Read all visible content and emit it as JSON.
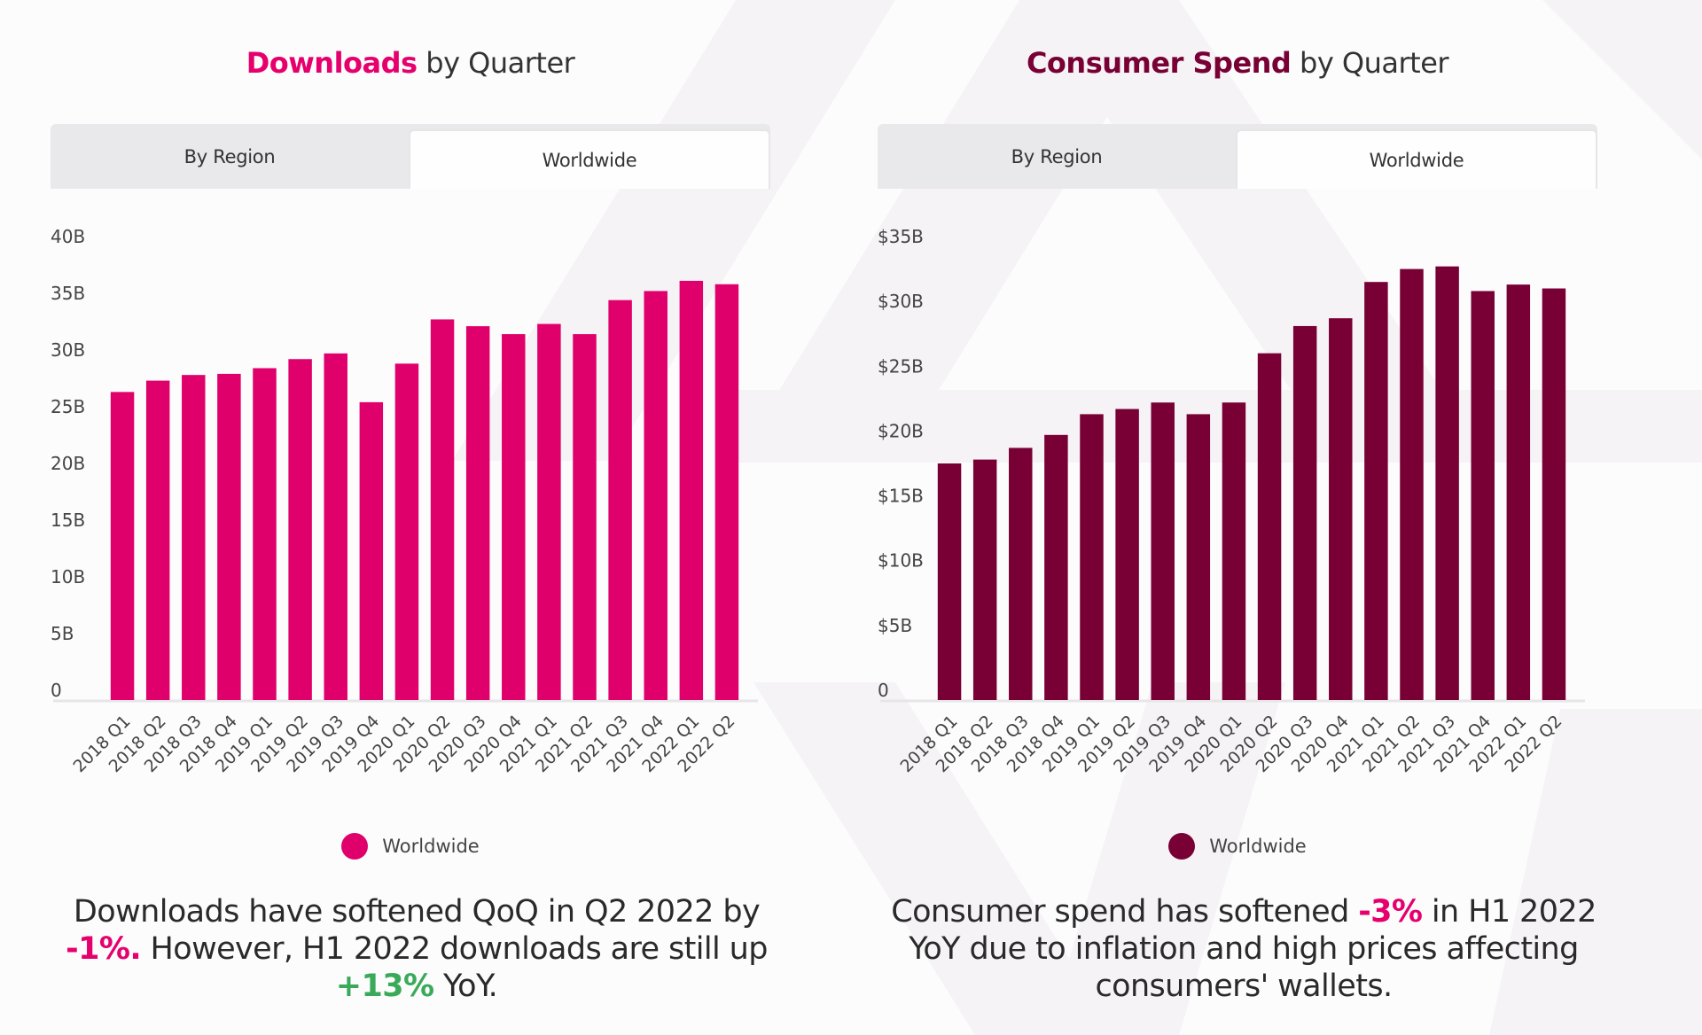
{
  "colors": {
    "downloads": "#e0006b",
    "spend": "#780034",
    "negative": "#e5006d",
    "positive": "#3aaa5a"
  },
  "left": {
    "title_highlight": "Downloads",
    "title_rest": " by Quarter",
    "tabs": [
      {
        "label": "By Region",
        "active": false
      },
      {
        "label": "Worldwide",
        "active": true
      }
    ],
    "legend_label": "Worldwide",
    "commentary": {
      "part1": "Downloads have softened QoQ in Q2 2022 by ",
      "neg": "-1%.",
      "part2": " However, H1 2022 downloads are still up ",
      "pos": "+13%",
      "part3": " YoY."
    }
  },
  "right": {
    "title_highlight": "Consumer Spend",
    "title_rest": " by Quarter",
    "tabs": [
      {
        "label": "By Region",
        "active": false
      },
      {
        "label": "Worldwide",
        "active": true
      }
    ],
    "legend_label": "Worldwide",
    "commentary": {
      "part1": "Consumer spend has softened ",
      "neg": "-3%",
      "part2": " in H1 2022 YoY due to inflation and high prices affecting consumers' wallets."
    }
  },
  "chart_data": [
    {
      "type": "bar",
      "title": "Downloads by Quarter",
      "xlabel": "",
      "ylabel": "",
      "categories": [
        "2018 Q1",
        "2018 Q2",
        "2018 Q3",
        "2018 Q4",
        "2019 Q1",
        "2019 Q2",
        "2019 Q3",
        "2019 Q4",
        "2020 Q1",
        "2020 Q2",
        "2020 Q3",
        "2020 Q4",
        "2021 Q1",
        "2021 Q2",
        "2021 Q3",
        "2021 Q4",
        "2022 Q1",
        "2022 Q2"
      ],
      "series": [
        {
          "name": "Worldwide",
          "values": [
            26.3,
            27.3,
            27.8,
            27.9,
            28.4,
            29.2,
            29.7,
            25.4,
            28.8,
            32.7,
            32.1,
            31.4,
            32.3,
            31.4,
            34.4,
            35.2,
            36.1,
            35.8
          ]
        }
      ],
      "unit": "B",
      "ylim": [
        0,
        40
      ],
      "yticks": [
        0,
        5,
        10,
        15,
        20,
        25,
        30,
        35,
        40
      ],
      "ytick_labels": [
        "0",
        "5B",
        "10B",
        "15B",
        "20B",
        "25B",
        "30B",
        "35B",
        "40B"
      ],
      "grid": false,
      "legend": "bottom-center"
    },
    {
      "type": "bar",
      "title": "Consumer Spend by Quarter",
      "xlabel": "",
      "ylabel": "",
      "categories": [
        "2018 Q1",
        "2018 Q2",
        "2018 Q3",
        "2018 Q4",
        "2019 Q1",
        "2019 Q2",
        "2019 Q3",
        "2019 Q4",
        "2020 Q1",
        "2020 Q2",
        "2020 Q3",
        "2020 Q4",
        "2021 Q1",
        "2021 Q2",
        "2021 Q3",
        "2021 Q4",
        "2022 Q1",
        "2022 Q2"
      ],
      "series": [
        {
          "name": "Worldwide",
          "values": [
            17.5,
            17.8,
            18.7,
            19.7,
            21.3,
            21.7,
            22.2,
            21.3,
            22.2,
            26.0,
            28.1,
            28.7,
            31.5,
            32.5,
            32.7,
            30.8,
            31.3,
            31.0
          ]
        }
      ],
      "unit": "$B",
      "ylim": [
        0,
        35
      ],
      "yticks": [
        0,
        5,
        10,
        15,
        20,
        25,
        30,
        35
      ],
      "ytick_labels": [
        "0",
        "$5B",
        "$10B",
        "$15B",
        "$20B",
        "$25B",
        "$30B",
        "$35B"
      ],
      "grid": false,
      "legend": "bottom-center"
    }
  ]
}
